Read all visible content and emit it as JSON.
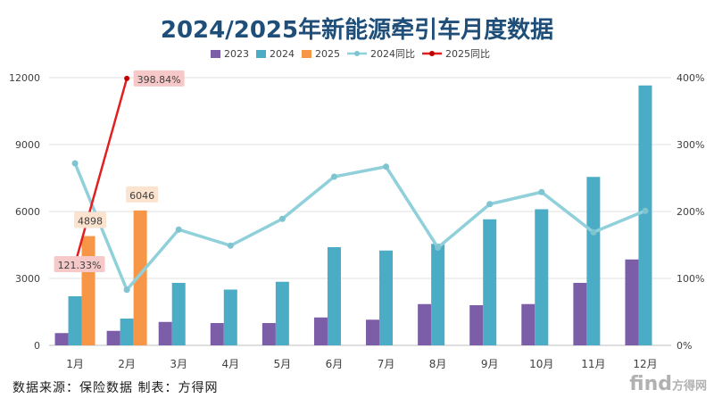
{
  "chart_data": {
    "type": "bar",
    "title": "2024/2025年新能源牵引车月度数据",
    "categories": [
      "1月",
      "2月",
      "3月",
      "4月",
      "5月",
      "6月",
      "7月",
      "8月",
      "9月",
      "10月",
      "11月",
      "12月"
    ],
    "series": [
      {
        "name": "2023",
        "kind": "bar",
        "axis": "left",
        "color": "#7b5ea7",
        "values": [
          550,
          650,
          1050,
          1000,
          1000,
          1250,
          1150,
          1850,
          1800,
          1850,
          2800,
          3850
        ]
      },
      {
        "name": "2024",
        "kind": "bar",
        "axis": "left",
        "color": "#4bacc6",
        "values": [
          2200,
          1200,
          2800,
          2500,
          2850,
          4400,
          4250,
          4550,
          5650,
          6100,
          7550,
          11650
        ]
      },
      {
        "name": "2025",
        "kind": "bar",
        "axis": "left",
        "color": "#f79646",
        "values": [
          4898,
          6046,
          null,
          null,
          null,
          null,
          null,
          null,
          null,
          null,
          null,
          null
        ]
      },
      {
        "name": "2024同比",
        "kind": "line",
        "axis": "right",
        "color": "#8fd0db",
        "values": [
          272,
          83,
          173,
          149,
          189,
          252,
          267,
          146,
          211,
          229,
          169,
          201
        ]
      },
      {
        "name": "2025同比",
        "kind": "line",
        "axis": "right",
        "color": "#e02020",
        "values": [
          121.33,
          398.84,
          null,
          null,
          null,
          null,
          null,
          null,
          null,
          null,
          null,
          null
        ]
      }
    ],
    "ylim_left": [
      0,
      12000
    ],
    "yticks_left": [
      "0",
      "3000",
      "6000",
      "9000",
      "12000"
    ],
    "ylim_right": [
      0,
      400
    ],
    "yticks_right": [
      "0%",
      "100%",
      "200%",
      "300%",
      "400%"
    ],
    "data_labels": {
      "bar_2025": [
        "4898",
        "6046"
      ],
      "line_2025": [
        "121.33%",
        "398.84%"
      ]
    },
    "legend_position": "top",
    "grid": true
  },
  "footer": {
    "source": "数据来源：保险数据  制表：方得网"
  },
  "watermark": {
    "logo_text": "find",
    "logo_sub": "方得网"
  }
}
